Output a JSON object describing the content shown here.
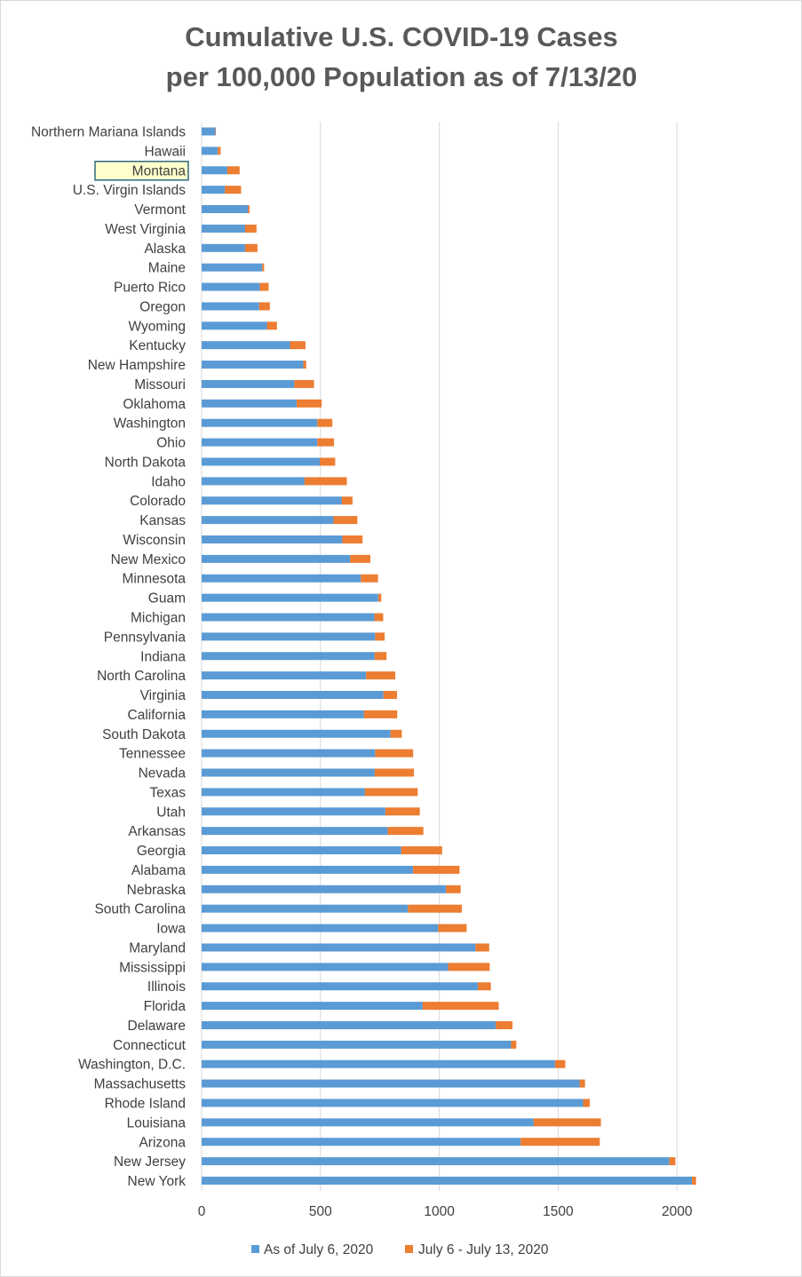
{
  "chart_data": {
    "type": "bar",
    "orientation": "horizontal",
    "stacked": true,
    "title": [
      "Cumulative U.S. COVID-19 Cases",
      "per 100,000 Population as of 7/13/20"
    ],
    "xlabel": "",
    "ylabel": "",
    "xlim": [
      0,
      2100
    ],
    "x_ticks": [
      0,
      500,
      1000,
      1500,
      2000
    ],
    "x_tick_labels": [
      "0",
      "500",
      "1000",
      "1500",
      "2000"
    ],
    "grid": "vertical",
    "legend_position": "bottom",
    "highlighted_category": "Montana",
    "highlight_fill": "#ffffcc",
    "highlight_border": "#2e6b7e",
    "categories": [
      "Northern Mariana Islands",
      "Hawaii",
      "Montana",
      "U.S. Virgin Islands",
      "Vermont",
      "West Virginia",
      "Alaska",
      "Maine",
      "Puerto Rico",
      "Oregon",
      "Wyoming",
      "Kentucky",
      "New Hampshire",
      "Missouri",
      "Oklahoma",
      "Washington",
      "Ohio",
      "North Dakota",
      "Idaho",
      "Colorado",
      "Kansas",
      "Wisconsin",
      "New Mexico",
      "Minnesota",
      "Guam",
      "Michigan",
      "Pennsylvania",
      "Indiana",
      "North Carolina",
      "Virginia",
      "California",
      "South Dakota",
      "Tennessee",
      "Nevada",
      "Texas",
      "Utah",
      "Arkansas",
      "Georgia",
      "Alabama",
      "Nebraska",
      "South Carolina",
      "Iowa",
      "Maryland",
      "Mississippi",
      "Illinois",
      "Florida",
      "Delaware",
      "Connecticut",
      "Washington, D.C.",
      "Massachusetts",
      "Rhode Island",
      "Louisiana",
      "Arizona",
      "New Jersey",
      "New York"
    ],
    "series": [
      {
        "name": "As of July 6, 2020",
        "color": "#5b9bd5",
        "values": [
          58,
          68,
          108,
          98,
          195,
          183,
          183,
          255,
          245,
          242,
          275,
          372,
          428,
          390,
          400,
          487,
          487,
          497,
          433,
          590,
          555,
          592,
          625,
          670,
          743,
          727,
          730,
          728,
          692,
          765,
          683,
          795,
          730,
          728,
          687,
          773,
          783,
          840,
          890,
          1028,
          868,
          995,
          1152,
          1037,
          1162,
          930,
          1238,
          1302,
          1487,
          1590,
          1605,
          1397,
          1342,
          1968,
          2063
        ]
      },
      {
        "name": "July 6 - July 13, 2020",
        "color": "#ed7d31",
        "values": [
          2,
          12,
          52,
          68,
          7,
          48,
          52,
          8,
          37,
          45,
          42,
          65,
          12,
          83,
          105,
          63,
          70,
          65,
          178,
          45,
          100,
          85,
          85,
          72,
          13,
          37,
          40,
          50,
          123,
          57,
          140,
          47,
          160,
          165,
          222,
          145,
          150,
          172,
          195,
          62,
          227,
          120,
          58,
          175,
          55,
          320,
          70,
          22,
          43,
          23,
          28,
          283,
          333,
          25,
          17
        ]
      }
    ]
  }
}
